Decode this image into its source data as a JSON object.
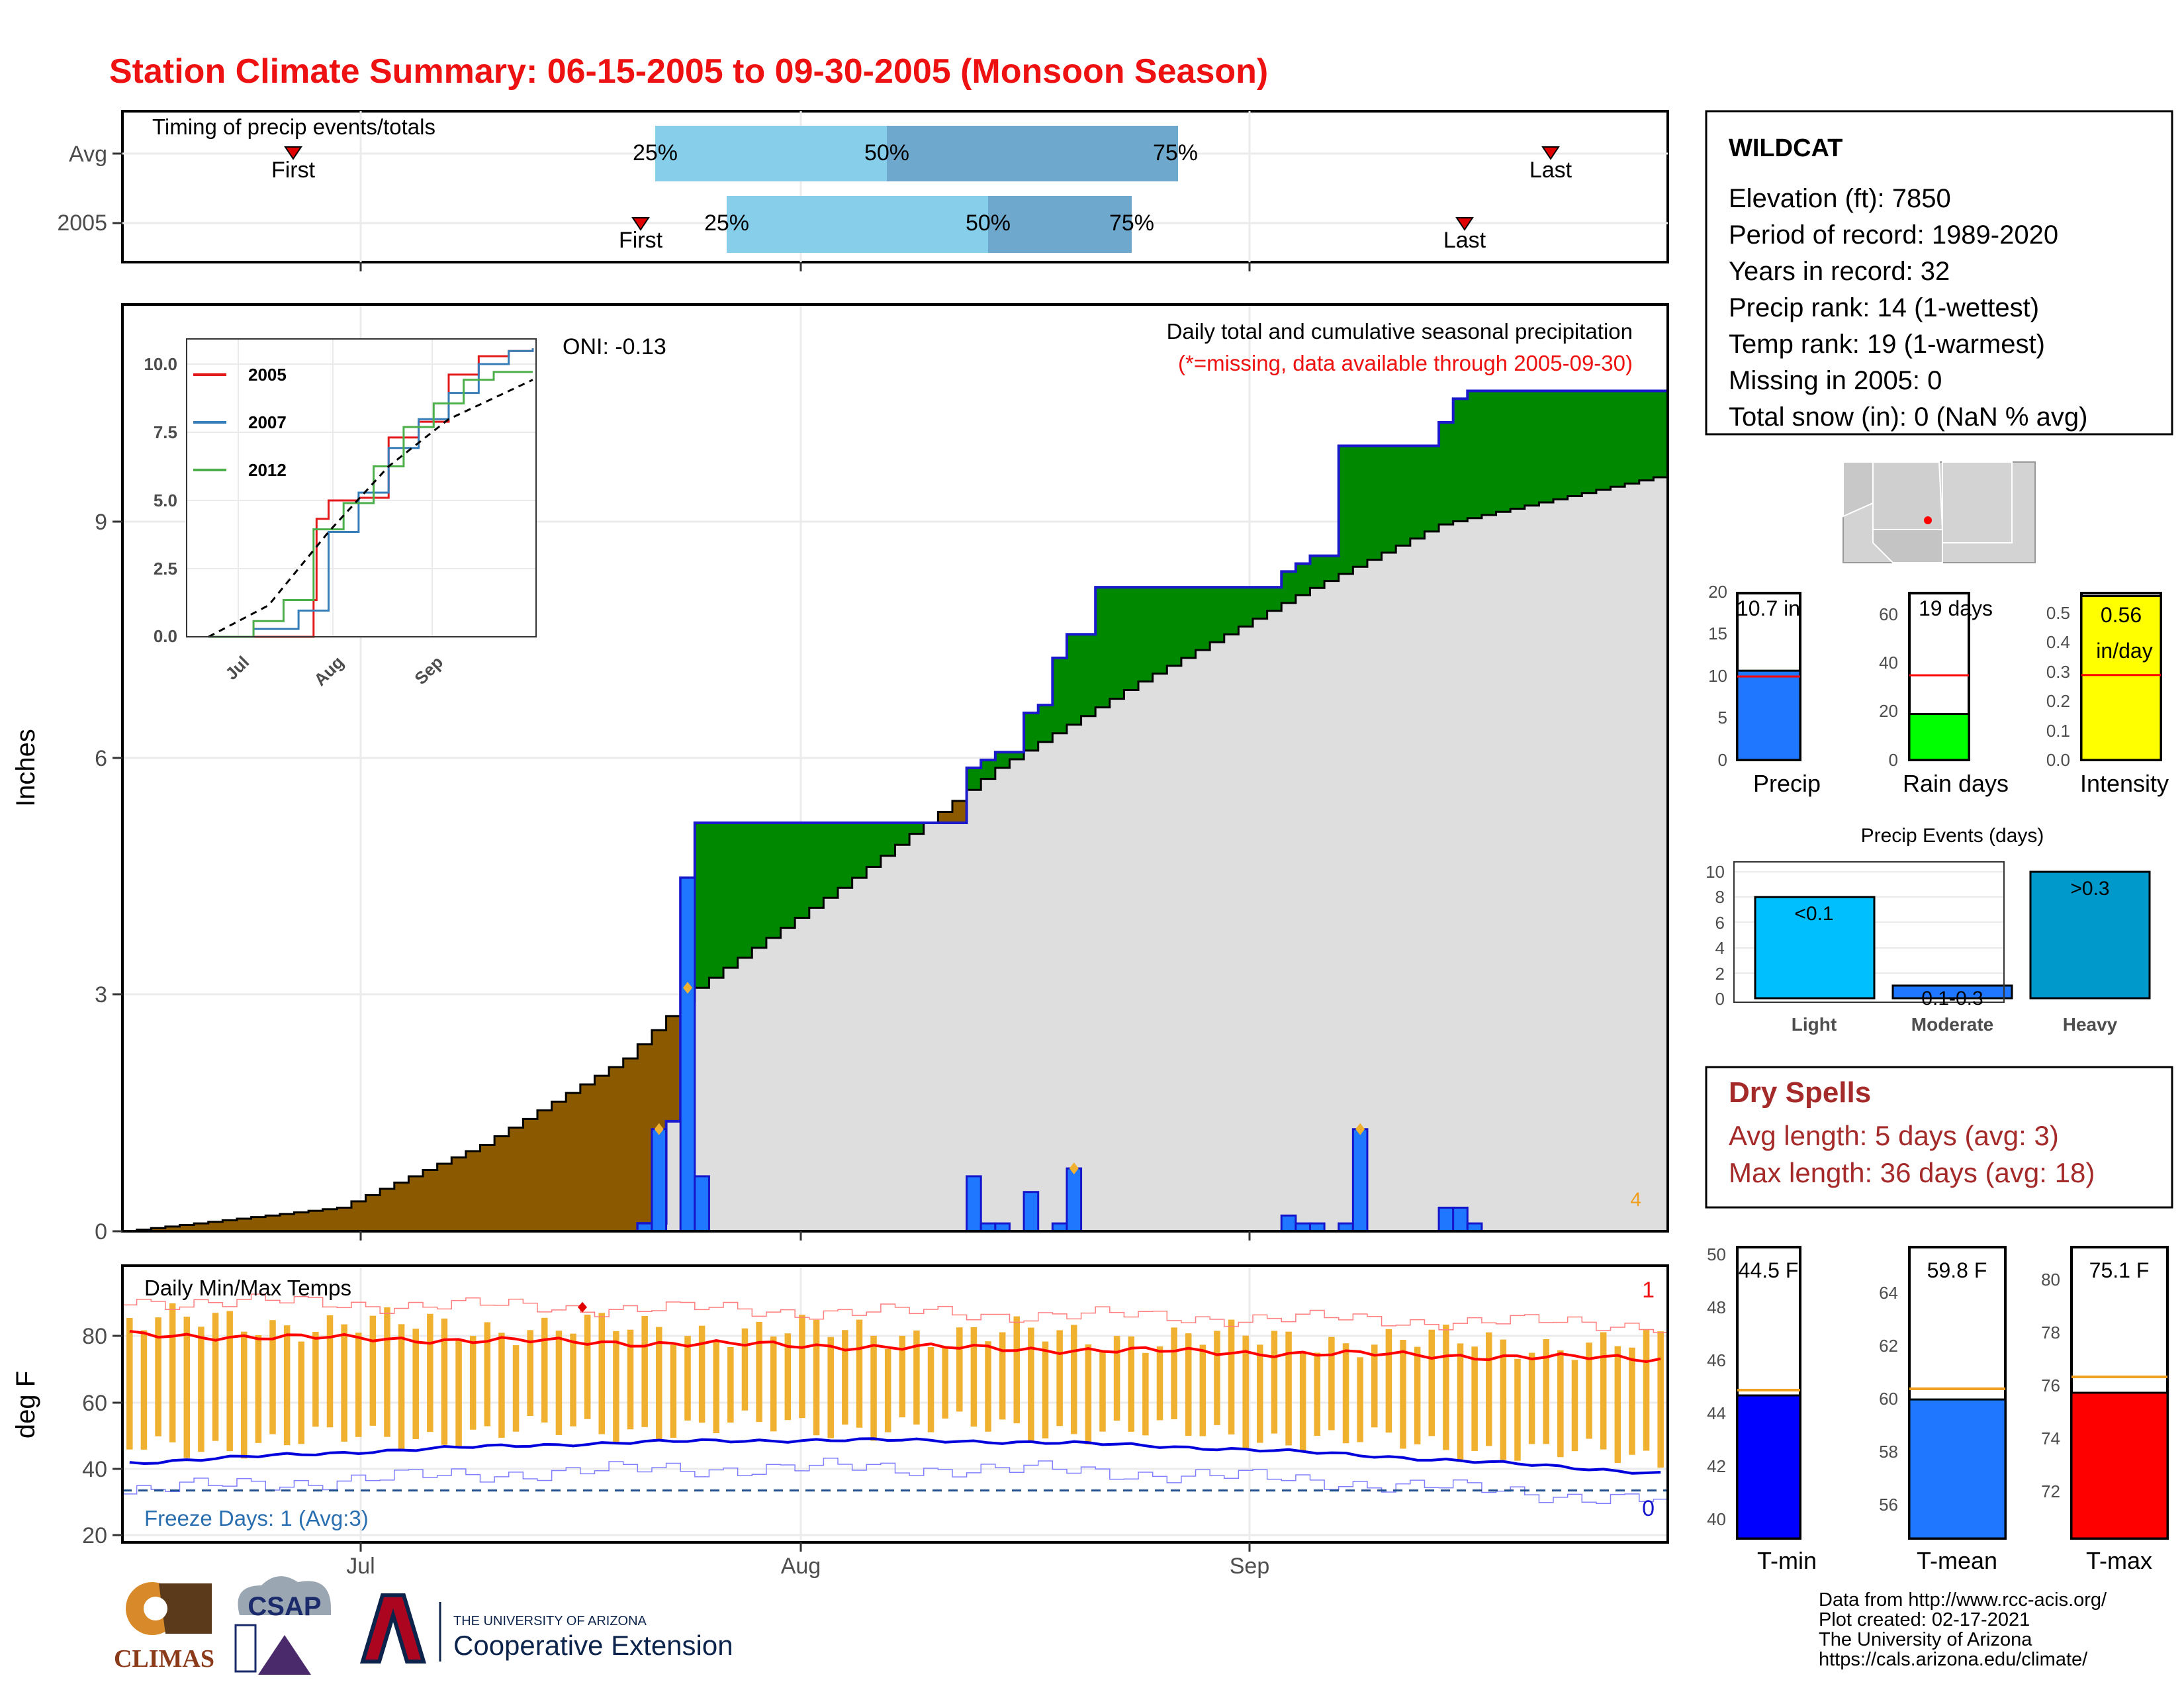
{
  "title": "Station Climate Summary: 06-15-2005 to 09-30-2005 (Monsoon Season)",
  "timing": {
    "label": "Timing of precip events/totals",
    "rows": [
      {
        "name": "Avg",
        "first": "First",
        "last": "Last",
        "p25": "25%",
        "p50": "50%",
        "p75": "75%"
      },
      {
        "name": "2005",
        "first": "First",
        "last": "Last",
        "p25": "25%",
        "p50": "50%",
        "p75": "75%"
      }
    ]
  },
  "precip_panel": {
    "title": "Daily total and cumulative seasonal precipitation",
    "subtitle": "(*=missing, data available through 2005-09-30)",
    "oni": "ONI: -0.13",
    "ylabel": "Inches",
    "yticks": [
      "0",
      "3",
      "6",
      "9"
    ],
    "corner_note": "4"
  },
  "inset": {
    "yticks": [
      "0.0",
      "2.5",
      "5.0",
      "7.5",
      "10.0"
    ],
    "xticks": [
      "Jul",
      "Aug",
      "Sep"
    ],
    "legend": [
      "2005",
      "2007",
      "2012"
    ]
  },
  "temp_panel": {
    "title": "Daily Min/Max Temps",
    "ylabel": "deg F",
    "yticks": [
      "20",
      "40",
      "60",
      "80"
    ],
    "freeze": "Freeze Days: 1 (Avg:3)",
    "top_note": "1",
    "bottom_note": "0"
  },
  "xaxis": {
    "ticks": [
      "Jul",
      "Aug",
      "Sep"
    ]
  },
  "station": {
    "name": "WILDCAT",
    "lines": [
      "Elevation (ft): 7850",
      "Period of record: 1989-2020",
      "Years in record: 32",
      "Precip rank: 14 (1-wettest)",
      "Temp rank: 19 (1-warmest)",
      "Missing in 2005: 0",
      "Total snow (in): 0 (NaN % avg)"
    ]
  },
  "mini_bars": {
    "precip": {
      "label": "Precip",
      "value_label": "10.7 in",
      "yticks": [
        "0",
        "5",
        "10",
        "15",
        "20"
      ]
    },
    "raindays": {
      "label": "Rain days",
      "value_label": "19 days",
      "yticks": [
        "0",
        "20",
        "40",
        "60"
      ]
    },
    "intensity": {
      "label": "Intensity",
      "value_label": "0.56",
      "value_unit": "in/day",
      "yticks": [
        "0.0",
        "0.1",
        "0.2",
        "0.3",
        "0.4",
        "0.5"
      ]
    }
  },
  "events": {
    "title": "Precip Events (days)",
    "yticks": [
      "0",
      "2",
      "4",
      "6",
      "8",
      "10"
    ],
    "bars": [
      {
        "label": "Light",
        "value_label": "<0.1"
      },
      {
        "label": "Moderate",
        "value_label": "0.1-0.3"
      },
      {
        "label": "Heavy",
        "value_label": ">0.3"
      }
    ]
  },
  "dry_spells": {
    "title": "Dry Spells",
    "lines": [
      "Avg length: 5 days (avg: 3)",
      "Max length: 36 days (avg: 18)"
    ]
  },
  "temp_bars": {
    "tmin": {
      "label": "T-min",
      "value_label": "44.5 F",
      "yticks": [
        "40",
        "42",
        "44",
        "46",
        "48",
        "50"
      ]
    },
    "tmean": {
      "label": "T-mean",
      "value_label": "59.8 F",
      "yticks": [
        "56",
        "58",
        "60",
        "62",
        "64"
      ]
    },
    "tmax": {
      "label": "T-max",
      "value_label": "75.1 F",
      "yticks": [
        "72",
        "74",
        "76",
        "78",
        "80"
      ]
    }
  },
  "footer": {
    "lines": [
      "Data from http://www.rcc-acis.org/",
      "Plot created: 02-17-2021",
      "The University of Arizona",
      "https://cals.arizona.edu/climate/"
    ],
    "logo_climas": "CLIMAS",
    "logo_csap": "CSAP",
    "ua_small": "THE UNIVERSITY OF ARIZONA",
    "ua_big": "Cooperative Extension"
  },
  "colors": {
    "title": "#ee1111",
    "obs": "#1f77ff",
    "green": "#008800",
    "brown": "#8b5a00",
    "grey": "#dedede",
    "yellow": "#ffff00",
    "lime": "#00ff00",
    "red": "#ff0000",
    "q_light": "#87ceeb",
    "q_dark": "#6fa8cd",
    "dry": "#a52a2a",
    "orange": "#f0b030"
  },
  "chart_data": [
    {
      "type": "area",
      "title": "Daily total and cumulative seasonal precipitation",
      "ylabel": "Inches",
      "ylim": [
        0,
        11.8
      ],
      "x_range": [
        "2005-06-15",
        "2005-09-30"
      ],
      "series": [
        {
          "name": "2005",
          "x": [
            "2005-06-15",
            "2005-07-21",
            "2005-07-23",
            "2005-07-24",
            "2005-07-25",
            "2005-08-13",
            "2005-08-14",
            "2005-08-15",
            "2005-08-17",
            "2005-08-18",
            "2005-08-19",
            "2005-08-20",
            "2005-08-22",
            "2005-08-24",
            "2005-08-25",
            "2005-08-26",
            "2005-09-04",
            "2005-09-05",
            "2005-09-06",
            "2005-09-07",
            "2005-09-08",
            "2005-09-09",
            "2005-09-15",
            "2005-09-16",
            "2005-09-17",
            "2005-09-30"
          ],
          "values": [
            0,
            0.1,
            1.4,
            4.5,
            5.2,
            5.9,
            6.0,
            6.1,
            6.6,
            6.7,
            7.3,
            7.6,
            8.2,
            8.2,
            8.2,
            8.2,
            8.4,
            8.5,
            8.6,
            8.6,
            10.0,
            10.0,
            10.3,
            10.6,
            10.7,
            10.7
          ]
        },
        {
          "name": "",
          "x": [
            "2005-06-15",
            "2005-06-30",
            "2005-07-10",
            "2005-07-20",
            "2005-07-25",
            "2005-08-05",
            "2005-08-15",
            "2005-08-25",
            "2005-09-05",
            "2005-09-15",
            "2005-09-30"
          ],
          "values": [
            0,
            0.3,
            1.1,
            2.2,
            3.1,
            4.5,
            5.9,
            7.0,
            8.1,
            9.0,
            9.6
          ]
        }
      ],
      "daily_bars": {
        "x": [
          "2005-07-21",
          "2005-07-22",
          "2005-07-24",
          "2005-07-25",
          "2005-08-13",
          "2005-08-14",
          "2005-08-15",
          "2005-08-17",
          "2005-08-19",
          "2005-08-20",
          "2005-09-04",
          "2005-09-05",
          "2005-09-06",
          "2005-09-08",
          "2005-09-09",
          "2005-09-15",
          "2005-09-16",
          "2005-09-17"
        ],
        "values": [
          0.1,
          1.3,
          4.5,
          0.7,
          0.7,
          0.1,
          0.1,
          0.5,
          0.1,
          0.8,
          0.2,
          0.1,
          0.1,
          0.1,
          1.3,
          0.3,
          0.3,
          0.1
        ]
      }
    },
    {
      "type": "line",
      "title": "",
      "ylim": [
        0,
        11
      ],
      "series": [
        {
          "name": "2005",
          "x": [
            0,
            30,
            35,
            36,
            40,
            44,
            50,
            60,
            70,
            80,
            90,
            100,
            108
          ],
          "values": [
            0,
            0,
            1.4,
            4.5,
            5.2,
            5.2,
            5.3,
            7.6,
            8.2,
            10.0,
            10.7,
            10.9,
            11.0
          ]
        },
        {
          "name": "2007",
          "x": [
            0,
            15,
            30,
            40,
            50,
            60,
            70,
            80,
            90,
            100,
            108
          ],
          "values": [
            0,
            0.3,
            1.0,
            4.0,
            5.5,
            7.2,
            8.3,
            9.3,
            10.4,
            10.9,
            11.0
          ]
        },
        {
          "name": "2012",
          "x": [
            0,
            15,
            25,
            35,
            45,
            55,
            65,
            75,
            85,
            95,
            108
          ],
          "values": [
            0,
            0.6,
            1.4,
            4.1,
            5.1,
            6.5,
            8.0,
            8.9,
            9.8,
            10.1,
            10.1
          ]
        },
        {
          "name": "",
          "x": [
            0,
            20,
            40,
            60,
            80,
            108
          ],
          "values": [
            0,
            1.2,
            4.0,
            6.5,
            8.3,
            9.8
          ]
        }
      ]
    },
    {
      "type": "bar",
      "title": "Daily Min/Max Temps",
      "ylabel": "deg F",
      "ylim": [
        17,
        97
      ],
      "summary": {
        "avg_max_start": 77,
        "avg_max_end": 70,
        "avg_min_start": 40,
        "avg_min_end": 37,
        "freeze_line": 32
      }
    },
    {
      "type": "bar",
      "categories": [
        "Precip",
        "Rain days",
        "Intensity"
      ],
      "values": [
        10.7,
        19,
        0.56
      ],
      "averages": [
        10.0,
        35,
        0.29
      ]
    },
    {
      "type": "bar",
      "title": "Precip Events (days)",
      "categories": [
        "Light",
        "Moderate",
        "Heavy"
      ],
      "values": [
        8,
        1,
        10
      ],
      "ylim": [
        0,
        10
      ]
    },
    {
      "type": "bar",
      "categories": [
        "T-min",
        "T-mean",
        "T-max"
      ],
      "values": [
        44.5,
        59.8,
        75.1
      ],
      "averages": [
        44.7,
        60.2,
        75.7
      ]
    }
  ]
}
